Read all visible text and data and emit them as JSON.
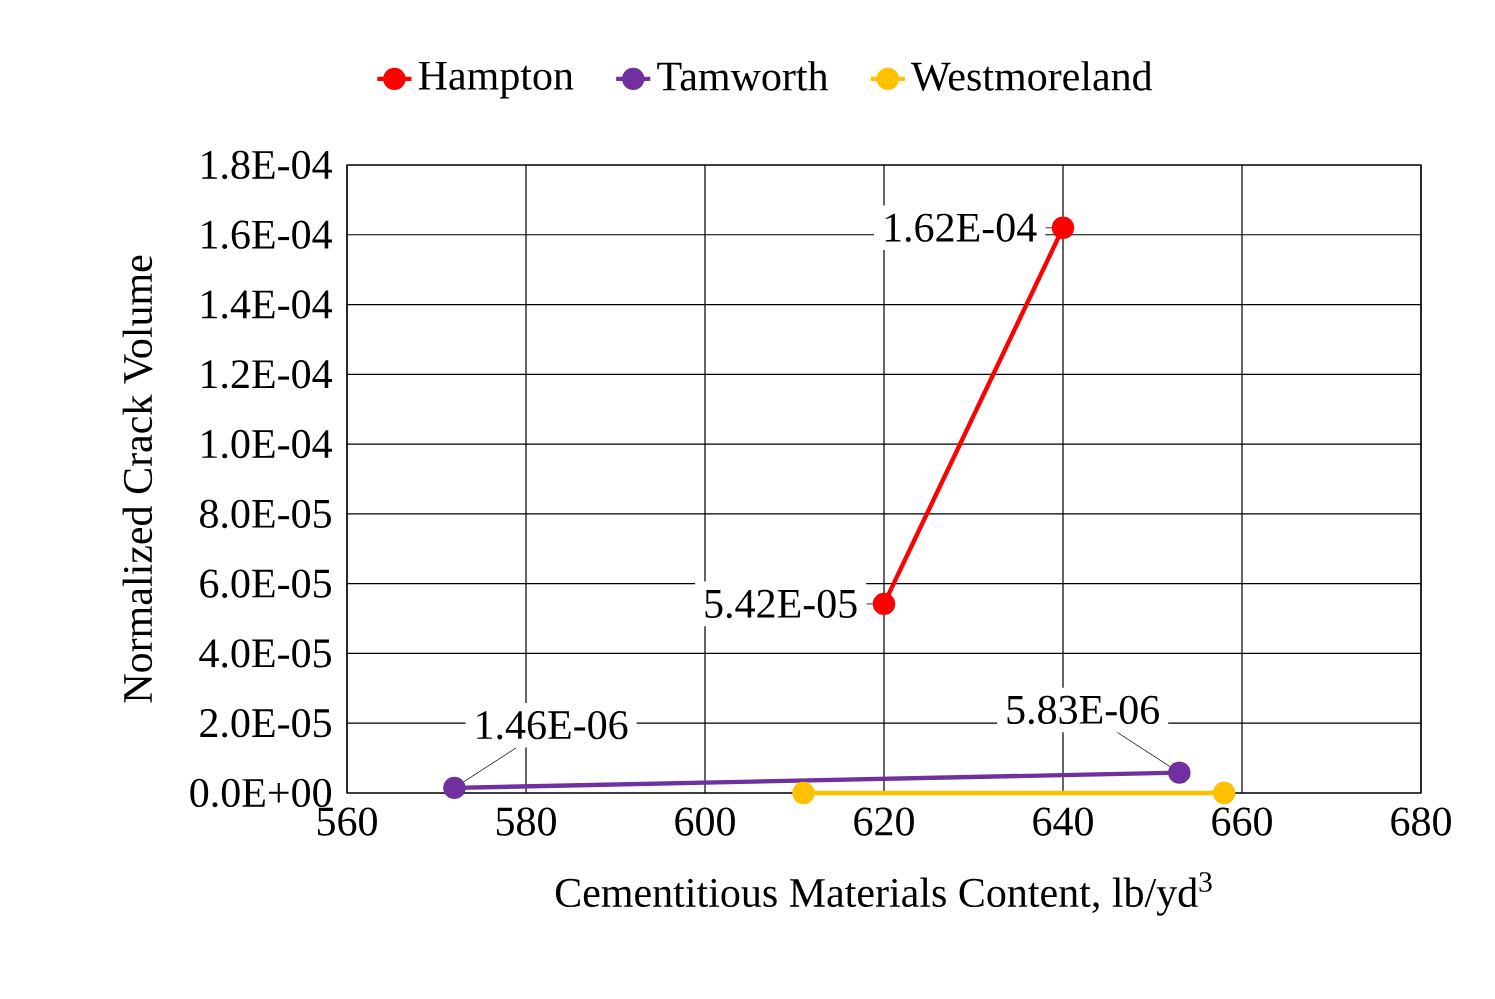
{
  "chart_data": {
    "type": "line",
    "xlabel": "Cementitious Materials Content, lb/yd$^{3}$",
    "ylabel": "Normalized Crack Volume",
    "xlim": [
      560,
      680
    ],
    "xticks": [
      560,
      580,
      600,
      620,
      640,
      660,
      680
    ],
    "ylim": [
      0,
      0.00018
    ],
    "yticks": [
      {
        "value": 0,
        "label": "0.0E+00"
      },
      {
        "value": 2e-05,
        "label": "2.0E-05"
      },
      {
        "value": 4e-05,
        "label": "4.0E-05"
      },
      {
        "value": 6e-05,
        "label": "6.0E-05"
      },
      {
        "value": 8e-05,
        "label": "8.0E-05"
      },
      {
        "value": 0.0001,
        "label": "1.0E-04"
      },
      {
        "value": 0.00012,
        "label": "1.2E-04"
      },
      {
        "value": 0.00014,
        "label": "1.4E-04"
      },
      {
        "value": 0.00016,
        "label": "1.6E-04"
      },
      {
        "value": 0.00018,
        "label": "1.8E-04"
      }
    ],
    "grid": true,
    "legend": "top",
    "marker": "circle",
    "line_style": "solid",
    "series": [
      {
        "name": "Hampton",
        "color": "#ff0000",
        "x": [
          620,
          640
        ],
        "values": [
          5.42e-05,
          0.000162
        ],
        "value_labels": [
          "5.42E-05",
          "1.62E-04"
        ]
      },
      {
        "name": "Tamworth",
        "color": "#7030a0",
        "x": [
          572,
          653
        ],
        "values": [
          1.46e-06,
          5.83e-06
        ],
        "value_labels": [
          "1.46E-06",
          "5.83E-06"
        ]
      },
      {
        "name": "Westmoreland",
        "color": "#ffc000",
        "x": [
          611,
          658
        ],
        "values": [
          0,
          0
        ]
      }
    ]
  }
}
